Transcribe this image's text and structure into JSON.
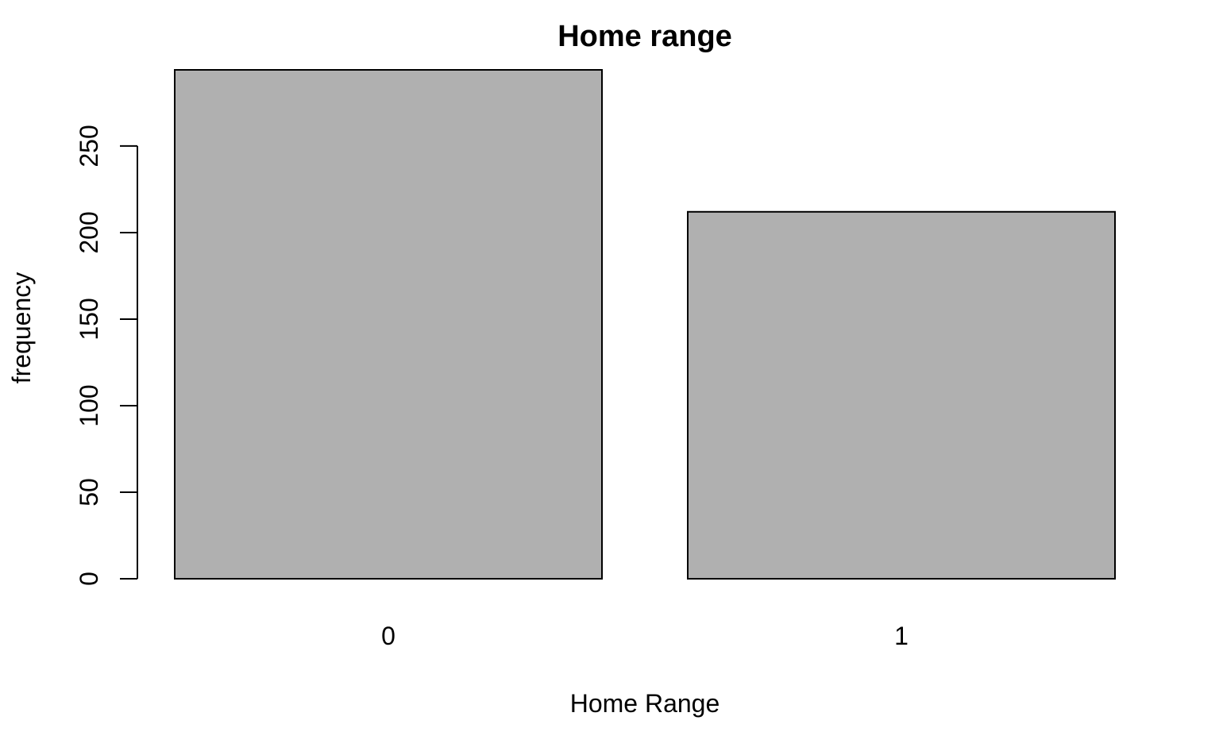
{
  "chart_data": {
    "type": "bar",
    "title": "Home range",
    "xlabel": "Home Range",
    "ylabel": "frequency",
    "categories": [
      "0",
      "1"
    ],
    "values": [
      294,
      212
    ],
    "ylim": [
      0,
      294
    ],
    "yticks": [
      0,
      50,
      100,
      150,
      200,
      250
    ],
    "ytick_labels": [
      "0",
      "50",
      "100",
      "150",
      "200",
      "250"
    ],
    "grid": false,
    "colors": {
      "bar_fill": "#b0b0b0",
      "bar_stroke": "#000000"
    }
  }
}
